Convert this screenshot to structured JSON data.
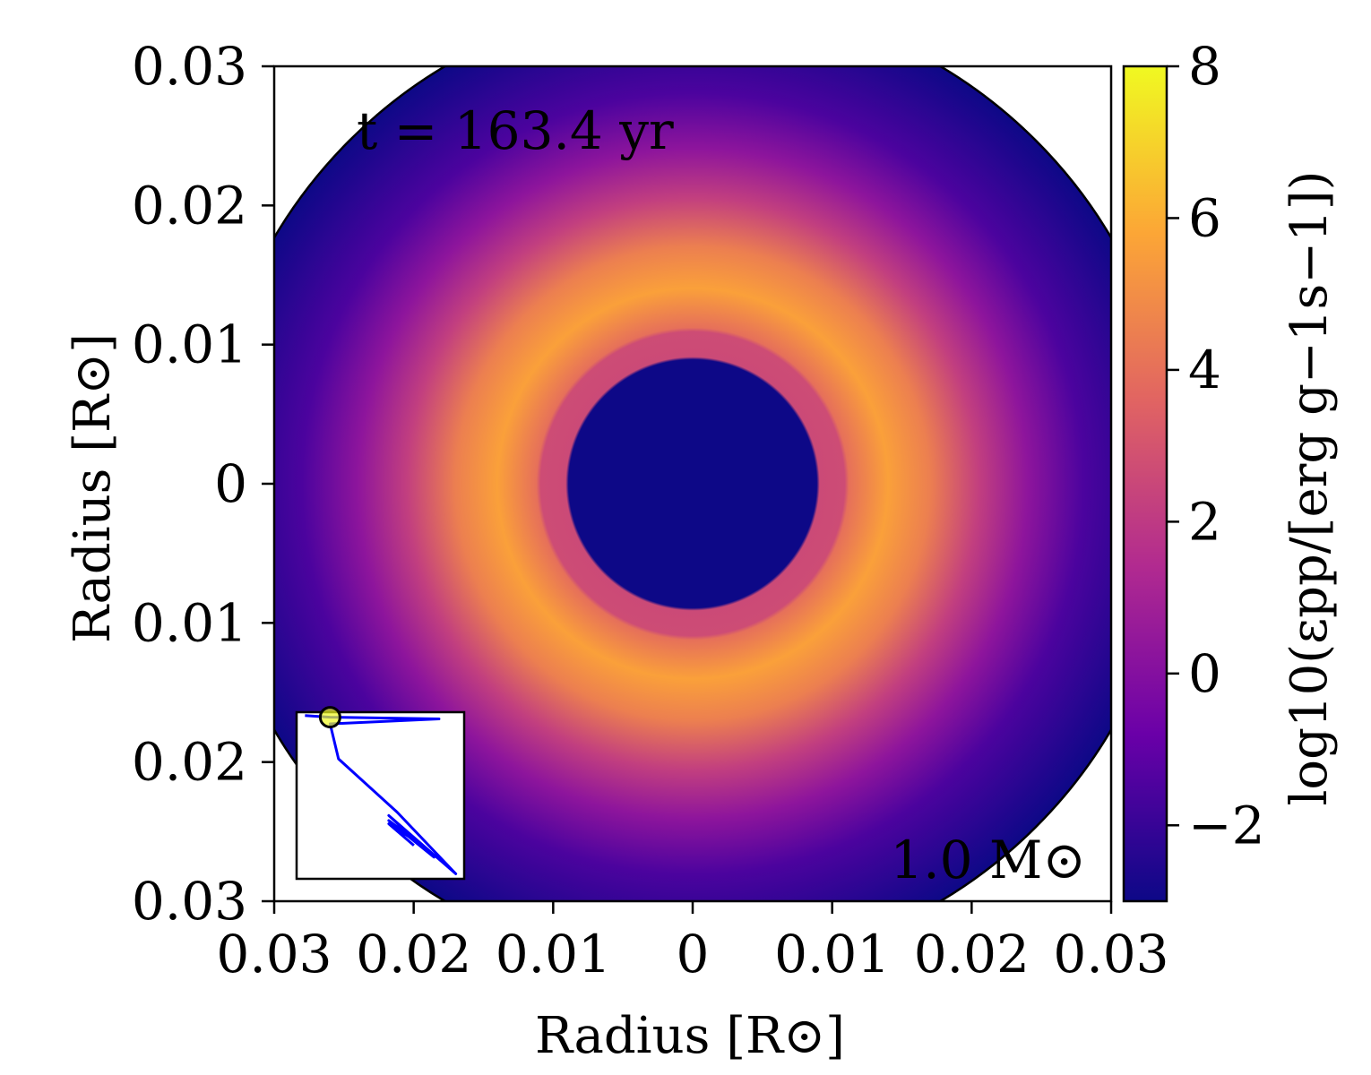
{
  "chart_data": {
    "type": "heatmap",
    "subtype": "radial-profile-map",
    "xlabel": "Radius [R⊙]",
    "ylabel": "Radius [R⊙]",
    "xlim": [
      -0.03,
      0.03
    ],
    "ylim": [
      -0.03,
      0.03
    ],
    "x_ticks": [
      -0.03,
      -0.02,
      -0.01,
      0,
      0.01,
      0.02,
      0.03
    ],
    "y_ticks": [
      -0.03,
      -0.02,
      -0.01,
      0,
      0.01,
      0.02,
      0.03
    ],
    "x_tick_labels": [
      "0.03",
      "0.02",
      "0.01",
      "0",
      "0.01",
      "0.02",
      "0.03"
    ],
    "y_tick_labels": [
      "0.03",
      "0.02",
      "0.01",
      "0",
      "0.01",
      "0.02",
      "0.03"
    ],
    "time_label": "t = 163.4 yr",
    "mass_label": "1.0 M⊙",
    "star_radius": 0.0348,
    "radial_profile": [
      {
        "r": 0.0,
        "value": -3.0
      },
      {
        "r": 0.0089,
        "value": -3.0
      },
      {
        "r": 0.0091,
        "value": 2.6
      },
      {
        "r": 0.0109,
        "value": 2.7
      },
      {
        "r": 0.0112,
        "value": 4.0
      },
      {
        "r": 0.014,
        "value": 5.6
      },
      {
        "r": 0.017,
        "value": 4.5
      },
      {
        "r": 0.0205,
        "value": 2.2
      },
      {
        "r": 0.024,
        "value": 0.3
      },
      {
        "r": 0.028,
        "value": -1.5
      },
      {
        "r": 0.0348,
        "value": -3.0
      }
    ],
    "colorbar": {
      "label": "log10(εpp/[erg g−1s−1])",
      "range": [
        -3,
        8
      ],
      "ticks": [
        -2,
        0,
        2,
        4,
        6,
        8
      ],
      "tick_labels": [
        "−2",
        "0",
        "2",
        "4",
        "6",
        "8"
      ],
      "colormap": "plasma",
      "colors": [
        "#0d0887",
        "#6a00a8",
        "#b12a90",
        "#e16462",
        "#fca636",
        "#f0f921"
      ]
    },
    "inset": {
      "type": "line",
      "line_color": "#0000ff",
      "marker_color": "#f0f921",
      "track": [
        [
          0.05,
          0.02
        ],
        [
          0.2,
          0.03
        ],
        [
          0.85,
          0.04
        ],
        [
          0.2,
          0.07
        ],
        [
          0.25,
          0.28
        ],
        [
          0.6,
          0.6
        ],
        [
          0.95,
          0.97
        ],
        [
          0.55,
          0.62
        ],
        [
          0.82,
          0.87
        ],
        [
          0.55,
          0.65
        ],
        [
          0.75,
          0.8
        ],
        [
          0.55,
          0.67
        ],
        [
          0.7,
          0.8
        ]
      ],
      "marker": [
        0.2,
        0.03
      ]
    }
  }
}
